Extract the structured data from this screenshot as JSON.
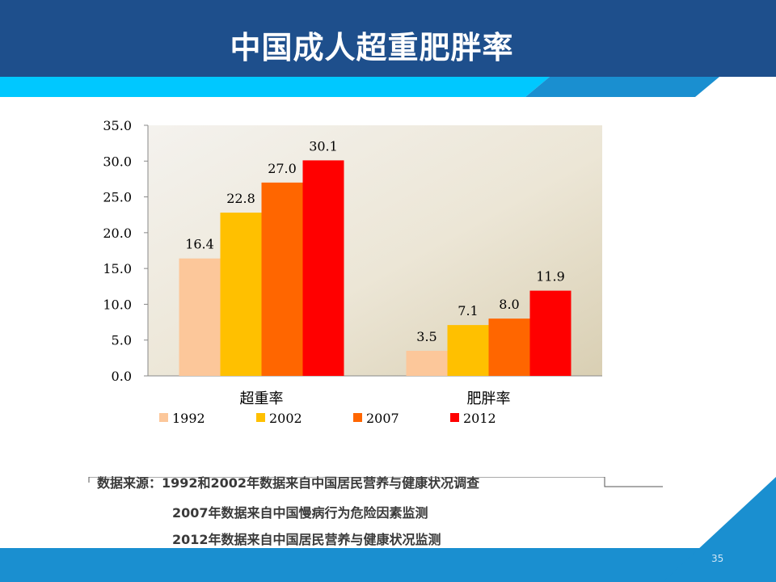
{
  "slide": {
    "title": "中国成人超重肥胖率",
    "page_number": "35"
  },
  "colors": {
    "header_bg": "#1e4f8c",
    "stripe_cyan": "#00c8ff",
    "stripe_blue": "#1a8fd0",
    "footer_blue": "#1a8fd0",
    "series": [
      "#fcc79a",
      "#ffc000",
      "#ff6600",
      "#ff0000"
    ]
  },
  "source": {
    "line1": "数据来源：1992和2002年数据来自中国居民营养与健康状况调查",
    "line2": "2007年数据来自中国慢病行为危险因素监测",
    "line3": "2012年数据来自中国居民营养与健康状况监测"
  },
  "chart_data": {
    "type": "bar",
    "categories": [
      "超重率",
      "肥胖率"
    ],
    "series": [
      {
        "name": "1992",
        "values": [
          16.4,
          3.5
        ]
      },
      {
        "name": "2002",
        "values": [
          22.8,
          7.1
        ]
      },
      {
        "name": "2007",
        "values": [
          27.0,
          8.0
        ]
      },
      {
        "name": "2012",
        "values": [
          30.1,
          11.9
        ]
      }
    ],
    "ylim": [
      0,
      35
    ],
    "yticks": [
      "0.0",
      "5.0",
      "10.0",
      "15.0",
      "20.0",
      "25.0",
      "30.0",
      "35.0"
    ],
    "data_labels": [
      [
        "16.4",
        "3.5"
      ],
      [
        "22.8",
        "7.1"
      ],
      [
        "27.0",
        "8.0"
      ],
      [
        "30.1",
        "11.9"
      ]
    ],
    "legend_position": "bottom",
    "grid": false
  }
}
